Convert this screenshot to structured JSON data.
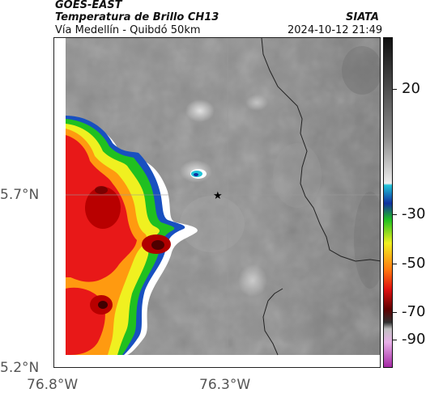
{
  "header": {
    "satellite": "GOES-EAST",
    "product": "Temperatura de Brillo CH13",
    "region": "Vía Medellín - Quibdó 50km",
    "source": "SIATA",
    "datetime": "2024-10-12 21:49"
  },
  "map": {
    "lat_labels": [
      "5.7°N",
      "5.2°N"
    ],
    "lon_labels": [
      "76.8°W",
      "76.3°W"
    ],
    "marker_icon": "star-icon"
  },
  "colorbar": {
    "labels": [
      "20",
      "-30",
      "-50",
      "-70",
      "-90"
    ],
    "colors": {
      "dark": "#1a1a1a",
      "gray": "#7a7a7a",
      "white": "#ffffff",
      "cyan": "#22c4d8",
      "blue": "#1030a0",
      "green": "#20c020",
      "yellow": "#f0f020",
      "red": "#e01010",
      "darkred": "#600000",
      "magenta": "#c040c0"
    }
  }
}
